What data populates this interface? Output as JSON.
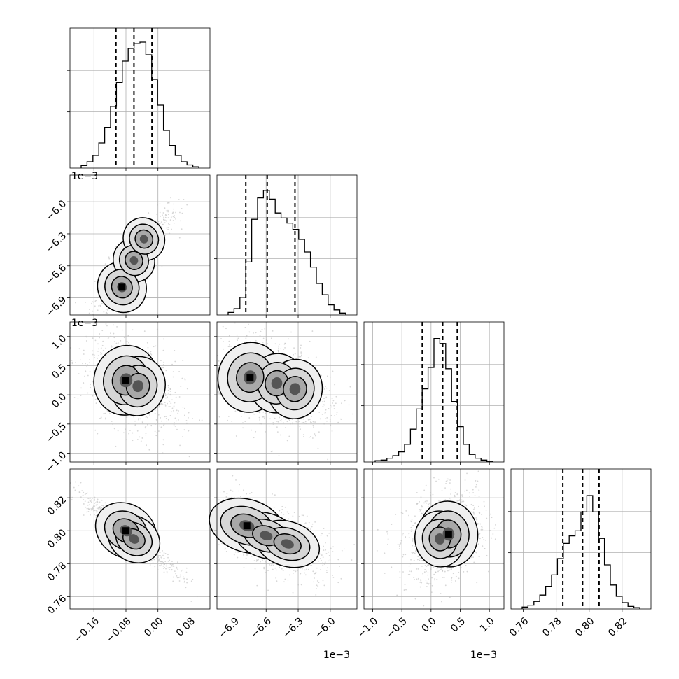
{
  "chart_data": {
    "type": "corner",
    "grid": true,
    "parameters": [
      {
        "range": [
          -0.22,
          0.13
        ],
        "ticks": [
          -0.16,
          -0.08,
          0.0,
          0.08
        ],
        "tick_labels": [
          "−0.16",
          "−0.08",
          "0.00",
          "0.08"
        ],
        "offset_text": "",
        "quantiles": [
          -0.105,
          -0.06,
          -0.015
        ]
      },
      {
        "range": [
          -7.06,
          -5.75
        ],
        "ticks": [
          -6.9,
          -6.6,
          -6.3,
          -6.0
        ],
        "tick_labels": [
          "−6.9",
          "−6.6",
          "−6.3",
          "−6.0"
        ],
        "offset_text": "1e−3",
        "quantiles": [
          -6.79,
          -6.59,
          -6.33
        ]
      },
      {
        "range": [
          -1.15,
          1.25
        ],
        "ticks": [
          -1.0,
          -0.5,
          0.0,
          0.5,
          1.0
        ],
        "tick_labels": [
          "−1.0",
          "−0.5",
          "0.0",
          "0.5",
          "1.0"
        ],
        "offset_text": "1e−3",
        "quantiles": [
          -0.15,
          0.2,
          0.45
        ]
      },
      {
        "range": [
          0.7525,
          0.8375
        ],
        "ticks": [
          0.76,
          0.78,
          0.8,
          0.82
        ],
        "tick_labels": [
          "0.76",
          "0.78",
          "0.80",
          "0.82"
        ],
        "offset_text": "",
        "quantiles": [
          0.784,
          0.796,
          0.806
        ]
      }
    ],
    "histograms": [
      [
        0.02,
        0.05,
        0.1,
        0.2,
        0.32,
        0.49,
        0.68,
        0.85,
        0.95,
        0.99,
        1.0,
        0.9,
        0.7,
        0.5,
        0.3,
        0.18,
        0.1,
        0.05,
        0.025,
        0.01
      ],
      [
        0.02,
        0.05,
        0.14,
        0.42,
        0.76,
        0.93,
        0.99,
        0.92,
        0.81,
        0.77,
        0.73,
        0.68,
        0.6,
        0.5,
        0.38,
        0.25,
        0.16,
        0.08,
        0.04,
        0.015
      ],
      [
        0.01,
        0.015,
        0.03,
        0.05,
        0.08,
        0.14,
        0.26,
        0.42,
        0.58,
        0.75,
        0.98,
        0.94,
        0.74,
        0.48,
        0.28,
        0.14,
        0.06,
        0.03,
        0.015,
        0.005
      ],
      [
        0.015,
        0.03,
        0.06,
        0.11,
        0.18,
        0.27,
        0.4,
        0.52,
        0.58,
        0.62,
        0.77,
        0.9,
        0.77,
        0.56,
        0.35,
        0.19,
        0.1,
        0.05,
        0.02,
        0.01
      ]
    ],
    "pairs": [
      {
        "row": 1,
        "col": 0,
        "centers": [
          [
            -0.09,
            -6.8
          ],
          [
            -0.06,
            -6.55
          ],
          [
            -0.035,
            -6.35
          ]
        ],
        "spread": [
          0.03,
          0.12
        ],
        "corr": 0.85
      },
      {
        "row": 2,
        "col": 0,
        "centers": [
          [
            -0.08,
            0.25
          ],
          [
            -0.05,
            0.15
          ]
        ],
        "spread": [
          0.04,
          0.3
        ],
        "corr": -0.4
      },
      {
        "row": 2,
        "col": 1,
        "centers": [
          [
            -6.75,
            0.3
          ],
          [
            -6.5,
            0.2
          ],
          [
            -6.33,
            0.1
          ]
        ],
        "spread": [
          0.15,
          0.3
        ],
        "corr": -0.3
      },
      {
        "row": 3,
        "col": 0,
        "centers": [
          [
            -0.08,
            0.8
          ],
          [
            -0.06,
            0.795
          ]
        ],
        "spread": [
          0.04,
          0.008
        ],
        "corr": -0.95
      },
      {
        "row": 3,
        "col": 1,
        "centers": [
          [
            -6.78,
            0.803
          ],
          [
            -6.6,
            0.797
          ],
          [
            -6.4,
            0.792
          ]
        ],
        "spread": [
          0.18,
          0.008
        ],
        "corr": -0.5
      },
      {
        "row": 3,
        "col": 2,
        "centers": [
          [
            0.3,
            0.798
          ],
          [
            0.15,
            0.795
          ]
        ],
        "spread": [
          0.25,
          0.01
        ],
        "corr": 0.25
      }
    ]
  }
}
